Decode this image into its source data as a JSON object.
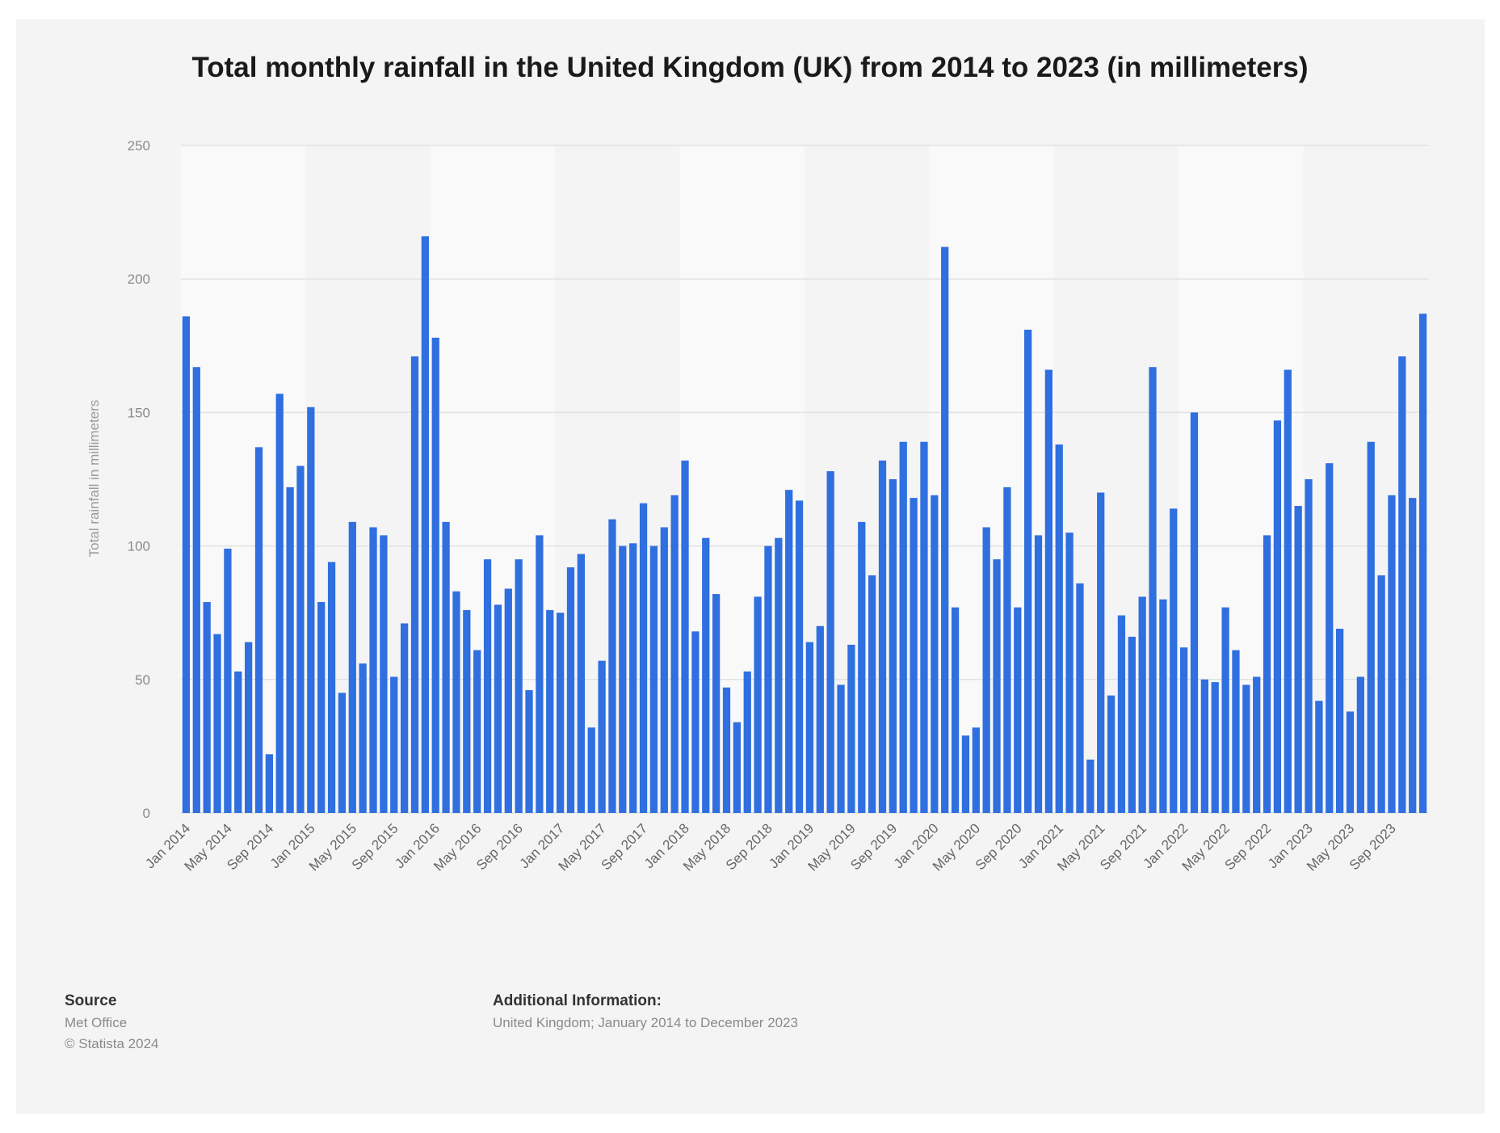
{
  "title": "Total monthly rainfall in the United Kingdom (UK) from 2014 to 2023 (in millimeters)",
  "footer": {
    "source_heading": "Source",
    "source_name": "Met Office",
    "copyright": "© Statista 2024",
    "info_heading": "Additional Information:",
    "info_text": "United Kingdom; January 2014 to December 2023"
  },
  "colors": {
    "bar": "#2f6fe0",
    "background": "#f4f4f4"
  },
  "chart_data": {
    "type": "bar",
    "title": "Total monthly rainfall in the United Kingdom (UK) from 2014 to 2023 (in millimeters)",
    "xlabel": "",
    "ylabel": "Total rainfall in millimeters",
    "ylim": [
      0,
      250
    ],
    "yticks": [
      0,
      50,
      100,
      150,
      200,
      250
    ],
    "grid": true,
    "tick_labels": [
      "Jan 2014",
      "May 2014",
      "Sep 2014",
      "Jan 2015",
      "May 2015",
      "Sep 2015",
      "Jan 2016",
      "May 2016",
      "Sep 2016",
      "Jan 2017",
      "May 2017",
      "Sep 2017",
      "Jan 2018",
      "May 2018",
      "Sep 2018",
      "Jan 2019",
      "May 2019",
      "Sep 2019",
      "Jan 2020",
      "May 2020",
      "Sep 2020",
      "Jan 2021",
      "May 2021",
      "Sep 2021",
      "Jan 2022",
      "May 2022",
      "Sep 2022",
      "Jan 2023",
      "May 2023",
      "Sep 2023"
    ],
    "categories": [
      "Jan 2014",
      "Feb 2014",
      "Mar 2014",
      "Apr 2014",
      "May 2014",
      "Jun 2014",
      "Jul 2014",
      "Aug 2014",
      "Sep 2014",
      "Oct 2014",
      "Nov 2014",
      "Dec 2014",
      "Jan 2015",
      "Feb 2015",
      "Mar 2015",
      "Apr 2015",
      "May 2015",
      "Jun 2015",
      "Jul 2015",
      "Aug 2015",
      "Sep 2015",
      "Oct 2015",
      "Nov 2015",
      "Dec 2015",
      "Jan 2016",
      "Feb 2016",
      "Mar 2016",
      "Apr 2016",
      "May 2016",
      "Jun 2016",
      "Jul 2016",
      "Aug 2016",
      "Sep 2016",
      "Oct 2016",
      "Nov 2016",
      "Dec 2016",
      "Jan 2017",
      "Feb 2017",
      "Mar 2017",
      "Apr 2017",
      "May 2017",
      "Jun 2017",
      "Jul 2017",
      "Aug 2017",
      "Sep 2017",
      "Oct 2017",
      "Nov 2017",
      "Dec 2017",
      "Jan 2018",
      "Feb 2018",
      "Mar 2018",
      "Apr 2018",
      "May 2018",
      "Jun 2018",
      "Jul 2018",
      "Aug 2018",
      "Sep 2018",
      "Oct 2018",
      "Nov 2018",
      "Dec 2018",
      "Jan 2019",
      "Feb 2019",
      "Mar 2019",
      "Apr 2019",
      "May 2019",
      "Jun 2019",
      "Jul 2019",
      "Aug 2019",
      "Sep 2019",
      "Oct 2019",
      "Nov 2019",
      "Dec 2019",
      "Jan 2020",
      "Feb 2020",
      "Mar 2020",
      "Apr 2020",
      "May 2020",
      "Jun 2020",
      "Jul 2020",
      "Aug 2020",
      "Sep 2020",
      "Oct 2020",
      "Nov 2020",
      "Dec 2020",
      "Jan 2021",
      "Feb 2021",
      "Mar 2021",
      "Apr 2021",
      "May 2021",
      "Jun 2021",
      "Jul 2021",
      "Aug 2021",
      "Sep 2021",
      "Oct 2021",
      "Nov 2021",
      "Dec 2021",
      "Jan 2022",
      "Feb 2022",
      "Mar 2022",
      "Apr 2022",
      "May 2022",
      "Jun 2022",
      "Jul 2022",
      "Aug 2022",
      "Sep 2022",
      "Oct 2022",
      "Nov 2022",
      "Dec 2022",
      "Jan 2023",
      "Feb 2023",
      "Mar 2023",
      "Apr 2023",
      "May 2023",
      "Jun 2023",
      "Jul 2023",
      "Aug 2023",
      "Sep 2023",
      "Oct 2023",
      "Nov 2023",
      "Dec 2023"
    ],
    "values": [
      186,
      167,
      79,
      67,
      99,
      53,
      64,
      137,
      22,
      157,
      122,
      130,
      152,
      79,
      94,
      45,
      109,
      56,
      107,
      104,
      51,
      71,
      171,
      216,
      178,
      109,
      83,
      76,
      61,
      95,
      78,
      84,
      95,
      46,
      104,
      76,
      75,
      92,
      97,
      32,
      57,
      110,
      100,
      101,
      116,
      100,
      107,
      119,
      132,
      68,
      103,
      82,
      47,
      34,
      53,
      81,
      100,
      103,
      121,
      117,
      64,
      70,
      128,
      48,
      63,
      109,
      89,
      132,
      125,
      139,
      118,
      139,
      119,
      212,
      77,
      29,
      32,
      107,
      95,
      122,
      77,
      181,
      104,
      166,
      138,
      105,
      86,
      20,
      120,
      44,
      74,
      66,
      81,
      167,
      80,
      114,
      62,
      150,
      50,
      49,
      77,
      61,
      48,
      51,
      104,
      147,
      166,
      115,
      125,
      42,
      131,
      69,
      38,
      51,
      139,
      89,
      119,
      171,
      118,
      187
    ]
  }
}
